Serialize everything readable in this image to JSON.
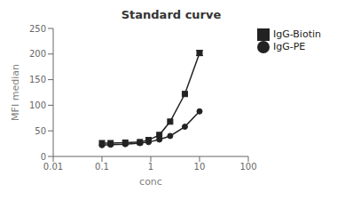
{
  "chart_data": {
    "type": "line",
    "title": "Standard curve",
    "xlabel": "conc",
    "ylabel": "MFI median",
    "log": "x",
    "grid": false,
    "legend": "right",
    "xlim": [
      0.01,
      100
    ],
    "xticks": [
      0.01,
      0.1,
      1,
      10,
      100
    ],
    "ylim": [
      0,
      250
    ],
    "yticks": [
      0,
      50,
      100,
      150,
      200,
      250
    ],
    "x": [
      0.1,
      0.15,
      0.3,
      0.6,
      0.9,
      1.5,
      2.5,
      5.0,
      10.0
    ],
    "series": [
      {
        "name": "IgG-PE",
        "color": "#222222",
        "marker": "circle",
        "values": [
          22,
          23,
          24,
          26,
          28,
          33,
          40,
          58,
          88
        ]
      },
      {
        "name": "IgG-Biotin",
        "color": "#222222",
        "marker": "square",
        "values": [
          26,
          26,
          27,
          28,
          32,
          42,
          68,
          122,
          202
        ],
        "errors": [
          0,
          0,
          0,
          0,
          0,
          0,
          0,
          0,
          5
        ]
      }
    ]
  }
}
